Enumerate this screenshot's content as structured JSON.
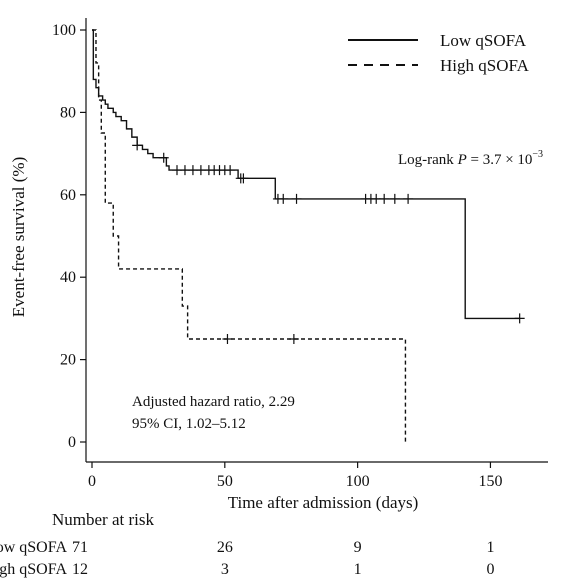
{
  "chart_data": {
    "type": "line",
    "subtype": "kaplan-meier",
    "title": "",
    "xlabel": "Time after admission (days)",
    "ylabel": "Event-free survival (%)",
    "xlim": [
      0,
      160
    ],
    "ylim": [
      0,
      100
    ],
    "xticks": [
      0,
      50,
      100,
      150
    ],
    "yticks": [
      0,
      20,
      40,
      60,
      80,
      100
    ],
    "grid": false,
    "legend_position": "top-right",
    "series": [
      {
        "name": "Low qSOFA",
        "line_style": "solid",
        "color": "#111111",
        "steps": [
          [
            0,
            100
          ],
          [
            0.5,
            88
          ],
          [
            1.5,
            86
          ],
          [
            2.5,
            84
          ],
          [
            4,
            83
          ],
          [
            5,
            82
          ],
          [
            6,
            81
          ],
          [
            8,
            80
          ],
          [
            9,
            79
          ],
          [
            11,
            78
          ],
          [
            13,
            76
          ],
          [
            15,
            74
          ],
          [
            17,
            72
          ],
          [
            19,
            71
          ],
          [
            21,
            70
          ],
          [
            23,
            69
          ],
          [
            28,
            67
          ],
          [
            29,
            66
          ],
          [
            55,
            64
          ],
          [
            69,
            59
          ],
          [
            140,
            59
          ],
          [
            140.5,
            30
          ],
          [
            161,
            30
          ]
        ],
        "censor": [
          17,
          27,
          32,
          35,
          38,
          41,
          44,
          46,
          48,
          50,
          52,
          56,
          57,
          70,
          72,
          77,
          103,
          105,
          107,
          110,
          114,
          119,
          161
        ]
      },
      {
        "name": "High qSOFA",
        "line_style": "dashed",
        "color": "#111111",
        "steps": [
          [
            0,
            100
          ],
          [
            1.5,
            92
          ],
          [
            2.5,
            83
          ],
          [
            3.5,
            75
          ],
          [
            5,
            58
          ],
          [
            8,
            50
          ],
          [
            10,
            42
          ],
          [
            34,
            33
          ],
          [
            36,
            25
          ],
          [
            118,
            25
          ],
          [
            118,
            0
          ]
        ],
        "censor": [
          51,
          76
        ]
      }
    ],
    "annotations": {
      "logrank_prefix": "Log-rank ",
      "logrank_p": "P",
      "logrank_value": " = 3.7 × 10",
      "logrank_exp": "−3",
      "hazard_line1": "Adjusted hazard ratio, 2.29",
      "hazard_line2": "95% CI, 1.02–5.12"
    },
    "risk_table": {
      "title": "Number at risk",
      "time_points": [
        0,
        50,
        100,
        150
      ],
      "rows": [
        {
          "label": "Low qSOFA",
          "values": [
            71,
            26,
            9,
            1
          ]
        },
        {
          "label": "High qSOFA",
          "values": [
            12,
            3,
            1,
            0
          ]
        }
      ]
    }
  }
}
